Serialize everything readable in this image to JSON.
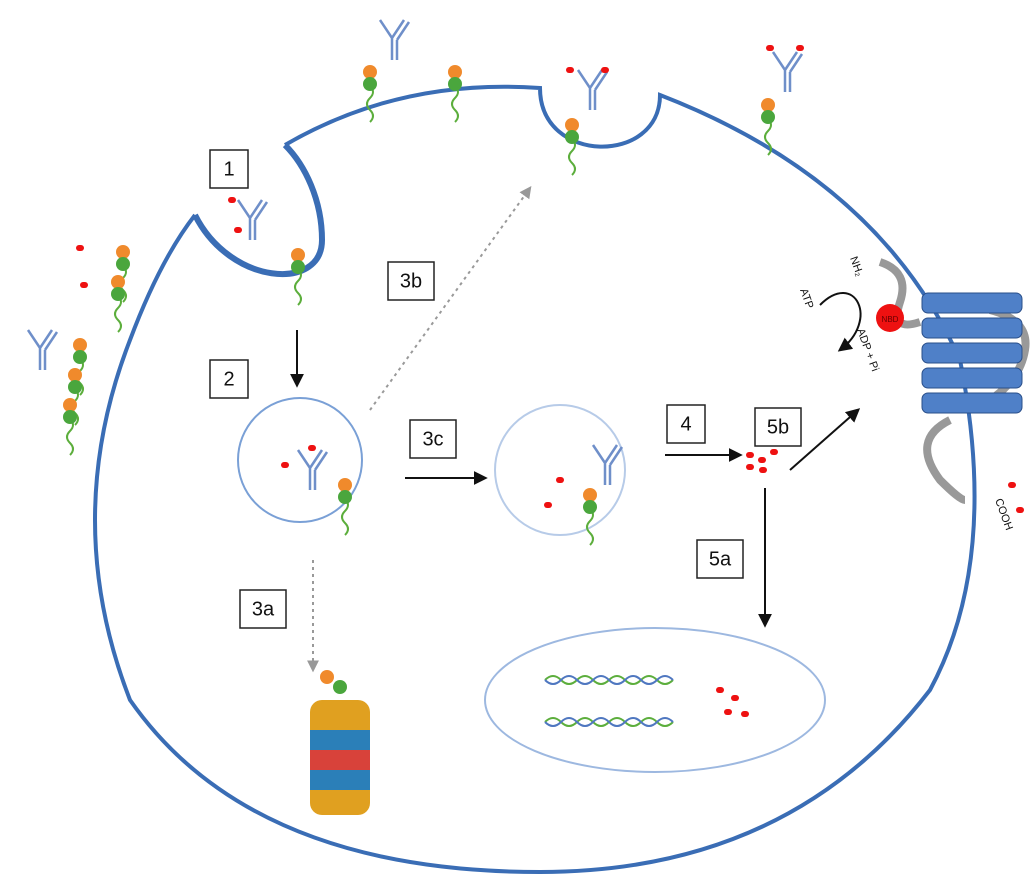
{
  "steps": [
    {
      "label": "1"
    },
    {
      "label": "2"
    },
    {
      "label": "3a"
    },
    {
      "label": "3b"
    },
    {
      "label": "3c"
    },
    {
      "label": "4"
    },
    {
      "label": "5a"
    },
    {
      "label": "5b"
    }
  ],
  "annotations": {
    "nh2": "NH₂",
    "atp": "ATP",
    "adp": "ADP + Pi",
    "cooh": "COOH",
    "nbd": "NBD"
  }
}
